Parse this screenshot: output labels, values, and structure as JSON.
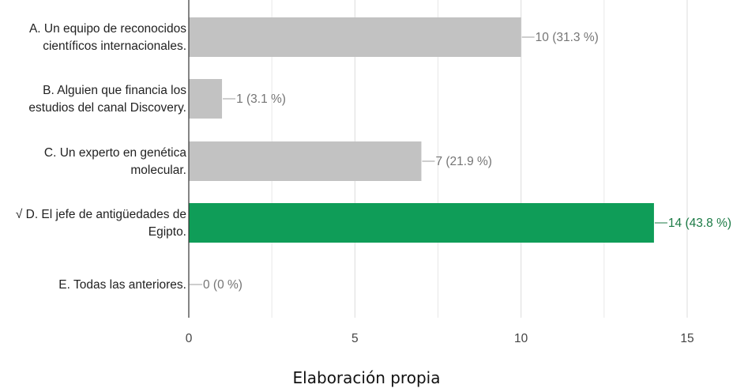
{
  "chart_data": {
    "type": "bar",
    "orientation": "horizontal",
    "categories": [
      [
        "A. Un equipo de reconocidos",
        "científicos internacionales."
      ],
      [
        "B. Alguien que financia los",
        "estudios del canal Discovery."
      ],
      [
        "C. Un experto en genética",
        "molecular."
      ],
      [
        "√ D. El jefe de antigüedades de",
        "Egipto."
      ],
      [
        "E. Todas las anteriores."
      ]
    ],
    "values": [
      10,
      1,
      7,
      14,
      0
    ],
    "value_labels": [
      "10 (31.3 %)",
      "1 (3.1 %)",
      "7 (21.9 %)",
      "14 (43.8 %)",
      "0 (0 %)"
    ],
    "highlight_index": 3,
    "xlim": [
      0,
      15
    ],
    "xticks": [
      0,
      5,
      10,
      15
    ],
    "xtick_labels": [
      "0",
      "5",
      "10",
      "15"
    ],
    "minor_grid": [
      2.5,
      7.5,
      12.5
    ],
    "grid": true,
    "colors": {
      "bar": "#c2c2c2",
      "highlight": "#0f9d58",
      "grid": "#e8e8e8",
      "axis": "#333333"
    }
  },
  "caption": "Elaboración propia"
}
